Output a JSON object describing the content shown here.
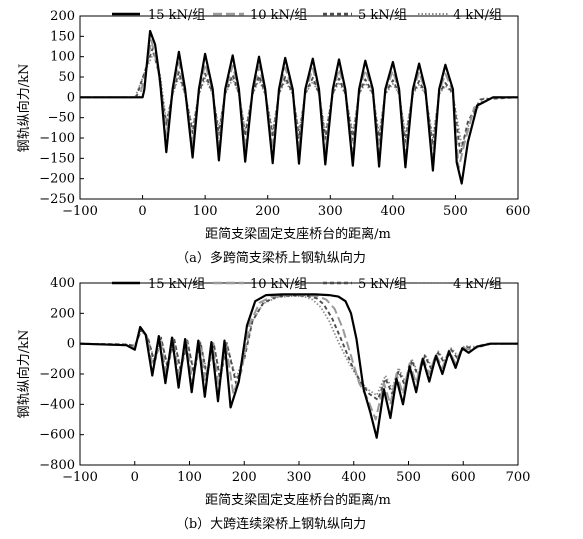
{
  "chart_data": [
    {
      "type": "line",
      "caption": "（a）多跨简支梁桥上钢轨纵向力",
      "xlabel": "距简支梁固定支座桥台的距离/m",
      "ylabel": "钢轨纵向力/kN",
      "xlim": [
        -100,
        600
      ],
      "ylim": [
        -250,
        200
      ],
      "xticks": [
        -100,
        0,
        100,
        200,
        300,
        400,
        500,
        600
      ],
      "yticks": [
        -250,
        -200,
        -150,
        -100,
        -50,
        0,
        50,
        100,
        150,
        200
      ],
      "xtick_labels": [
        "−100",
        "0",
        "100",
        "200",
        "300",
        "400",
        "500",
        "600"
      ],
      "ytick_labels": [
        "−250",
        "−200",
        "−150",
        "−100",
        "−50",
        "0",
        "50",
        "100",
        "150",
        "200"
      ],
      "legend_position": "top",
      "series": [
        {
          "name": "15 kN/组",
          "style": "solid",
          "color": "#000000",
          "x": [
            -100,
            0,
            3,
            12,
            20,
            28,
            38,
            48,
            58,
            68,
            80,
            90,
            100,
            112,
            122,
            132,
            144,
            154,
            164,
            176,
            186,
            196,
            208,
            218,
            228,
            240,
            250,
            260,
            272,
            282,
            292,
            304,
            314,
            324,
            336,
            346,
            356,
            368,
            378,
            388,
            400,
            410,
            420,
            432,
            442,
            452,
            464,
            474,
            484,
            496,
            502,
            510,
            520,
            535,
            560,
            600
          ],
          "y": [
            0,
            0,
            20,
            163,
            130,
            40,
            -135,
            20,
            112,
            20,
            -148,
            20,
            107,
            20,
            -155,
            20,
            103,
            20,
            -158,
            20,
            100,
            20,
            -162,
            20,
            97,
            20,
            -163,
            20,
            95,
            20,
            -165,
            20,
            93,
            20,
            -168,
            20,
            90,
            20,
            -170,
            20,
            87,
            20,
            -172,
            20,
            83,
            20,
            -180,
            20,
            80,
            20,
            -160,
            -212,
            -110,
            -20,
            0,
            0
          ]
        },
        {
          "name": "10 kN/组",
          "style": "longdash",
          "color": "#9a9a9a",
          "x": [
            -100,
            -5,
            5,
            14,
            24,
            38,
            48,
            58,
            68,
            80,
            90,
            100,
            112,
            122,
            132,
            144,
            154,
            164,
            176,
            186,
            196,
            208,
            218,
            228,
            240,
            250,
            260,
            272,
            282,
            292,
            304,
            314,
            324,
            336,
            346,
            356,
            368,
            378,
            388,
            400,
            410,
            420,
            432,
            442,
            452,
            464,
            474,
            484,
            496,
            505,
            515,
            530,
            560,
            600
          ],
          "y": [
            0,
            0,
            60,
            140,
            80,
            -95,
            15,
            85,
            15,
            -115,
            15,
            82,
            15,
            -120,
            15,
            78,
            15,
            -125,
            15,
            76,
            15,
            -128,
            15,
            73,
            15,
            -130,
            15,
            71,
            15,
            -132,
            15,
            69,
            15,
            -135,
            15,
            67,
            15,
            -137,
            15,
            65,
            15,
            -140,
            15,
            62,
            15,
            -150,
            15,
            58,
            15,
            -175,
            -110,
            -25,
            0,
            0
          ]
        },
        {
          "name": "5 kN/组",
          "style": "dashed",
          "color": "#4d4d4d",
          "x": [
            -100,
            -10,
            5,
            16,
            26,
            38,
            48,
            58,
            68,
            80,
            90,
            100,
            112,
            122,
            132,
            144,
            154,
            164,
            176,
            186,
            196,
            208,
            218,
            228,
            240,
            250,
            260,
            272,
            282,
            292,
            304,
            314,
            324,
            336,
            346,
            356,
            368,
            378,
            388,
            400,
            410,
            420,
            432,
            442,
            452,
            464,
            474,
            484,
            496,
            508,
            520,
            540,
            600
          ],
          "y": [
            0,
            0,
            70,
            120,
            60,
            -70,
            10,
            62,
            10,
            -88,
            10,
            58,
            10,
            -92,
            10,
            55,
            10,
            -95,
            10,
            53,
            10,
            -98,
            10,
            50,
            10,
            -100,
            10,
            48,
            10,
            -102,
            10,
            46,
            10,
            -105,
            10,
            44,
            10,
            -107,
            10,
            42,
            10,
            -110,
            10,
            40,
            10,
            -118,
            10,
            35,
            10,
            -140,
            -60,
            -5,
            0
          ]
        },
        {
          "name": "4 kN/组",
          "style": "dotted",
          "color": "#8a8a8a",
          "x": [
            -100,
            -12,
            5,
            18,
            28,
            38,
            48,
            58,
            68,
            80,
            90,
            100,
            112,
            122,
            132,
            144,
            154,
            164,
            176,
            186,
            196,
            208,
            218,
            228,
            240,
            250,
            260,
            272,
            282,
            292,
            304,
            314,
            324,
            336,
            346,
            356,
            368,
            378,
            388,
            400,
            410,
            420,
            432,
            442,
            452,
            464,
            474,
            484,
            496,
            510,
            525,
            545,
            600
          ],
          "y": [
            0,
            0,
            68,
            110,
            55,
            -58,
            8,
            50,
            8,
            -75,
            8,
            47,
            8,
            -78,
            8,
            45,
            8,
            -80,
            8,
            43,
            8,
            -82,
            8,
            41,
            8,
            -84,
            8,
            39,
            8,
            -86,
            8,
            37,
            8,
            -88,
            8,
            35,
            8,
            -90,
            8,
            33,
            8,
            -92,
            8,
            31,
            8,
            -100,
            8,
            28,
            8,
            -120,
            -50,
            -3,
            0
          ]
        }
      ]
    },
    {
      "type": "line",
      "caption": "（b）大跨连续梁桥上钢轨纵向力",
      "xlabel": "距简支梁固定支座桥台的距离/m",
      "ylabel": "钢轨纵向力/kN",
      "xlim": [
        -100,
        700
      ],
      "ylim": [
        -800,
        400
      ],
      "xticks": [
        -100,
        0,
        100,
        200,
        300,
        400,
        500,
        600,
        700
      ],
      "yticks": [
        -800,
        -600,
        -400,
        -200,
        0,
        200,
        400
      ],
      "xtick_labels": [
        "−100",
        "0",
        "100",
        "200",
        "300",
        "400",
        "500",
        "600",
        "700"
      ],
      "ytick_labels": [
        "−800",
        "−600",
        "−400",
        "−200",
        "0",
        "200",
        "400"
      ],
      "legend_position": "top",
      "series": [
        {
          "name": "15 kN/组",
          "style": "solid",
          "color": "#000000",
          "x": [
            -100,
            -15,
            0,
            10,
            20,
            32,
            44,
            56,
            68,
            80,
            92,
            104,
            116,
            128,
            140,
            152,
            164,
            175,
            190,
            205,
            220,
            240,
            270,
            300,
            330,
            355,
            372,
            385,
            395,
            405,
            418,
            430,
            442,
            455,
            467,
            478,
            490,
            502,
            514,
            526,
            538,
            550,
            562,
            574,
            586,
            598,
            610,
            625,
            650,
            700
          ],
          "y": [
            0,
            -10,
            -40,
            110,
            60,
            -210,
            50,
            -260,
            40,
            -290,
            30,
            -320,
            20,
            -350,
            10,
            -380,
            20,
            -420,
            -250,
            120,
            280,
            320,
            325,
            325,
            325,
            320,
            310,
            280,
            200,
            30,
            -300,
            -450,
            -620,
            -300,
            -490,
            -230,
            -400,
            -150,
            -320,
            -100,
            -250,
            -80,
            -200,
            -50,
            -160,
            -30,
            -60,
            -20,
            0,
            0
          ]
        },
        {
          "name": "10 kN/组",
          "style": "longdash",
          "color": "#9a9a9a",
          "x": [
            -100,
            -15,
            0,
            10,
            22,
            34,
            46,
            58,
            70,
            82,
            94,
            106,
            118,
            130,
            142,
            154,
            166,
            180,
            195,
            210,
            228,
            250,
            280,
            310,
            335,
            350,
            365,
            380,
            395,
            410,
            425,
            440,
            455,
            467,
            478,
            490,
            502,
            514,
            526,
            538,
            550,
            562,
            574,
            586,
            598,
            612,
            640,
            700
          ],
          "y": [
            0,
            -10,
            -25,
            100,
            50,
            -170,
            45,
            -210,
            35,
            -240,
            25,
            -260,
            15,
            -280,
            5,
            -300,
            10,
            -330,
            -180,
            130,
            270,
            310,
            320,
            320,
            312,
            290,
            230,
            100,
            -80,
            -260,
            -360,
            -500,
            -260,
            -400,
            -200,
            -330,
            -130,
            -260,
            -90,
            -200,
            -70,
            -160,
            -45,
            -130,
            -25,
            -40,
            0,
            0
          ]
        },
        {
          "name": "5 kN/组",
          "style": "dashed",
          "color": "#4d4d4d",
          "x": [
            -100,
            -15,
            0,
            12,
            24,
            36,
            48,
            60,
            72,
            84,
            96,
            108,
            120,
            132,
            144,
            156,
            168,
            185,
            200,
            215,
            235,
            260,
            290,
            315,
            332,
            345,
            360,
            378,
            395,
            412,
            428,
            444,
            458,
            470,
            482,
            494,
            506,
            518,
            530,
            542,
            554,
            566,
            578,
            590,
            602,
            620,
            650,
            700
          ],
          "y": [
            0,
            -5,
            -15,
            90,
            40,
            -130,
            40,
            -160,
            30,
            -180,
            20,
            -200,
            10,
            -220,
            5,
            -240,
            5,
            -260,
            -100,
            150,
            270,
            310,
            318,
            315,
            300,
            260,
            170,
            20,
            -130,
            -250,
            -330,
            -370,
            -230,
            -330,
            -180,
            -280,
            -110,
            -220,
            -80,
            -170,
            -60,
            -130,
            -40,
            -100,
            -20,
            -30,
            0,
            0
          ]
        },
        {
          "name": "4 kN/组",
          "style": "dotted",
          "color": "#8a8a8a",
          "x": [
            -100,
            -15,
            0,
            12,
            24,
            36,
            48,
            60,
            72,
            84,
            96,
            108,
            120,
            132,
            144,
            156,
            168,
            185,
            200,
            215,
            235,
            260,
            290,
            310,
            325,
            340,
            355,
            372,
            390,
            408,
            425,
            442,
            458,
            470,
            482,
            494,
            506,
            518,
            530,
            542,
            554,
            566,
            578,
            590,
            602,
            620,
            650,
            700
          ],
          "y": [
            0,
            -5,
            -12,
            85,
            35,
            -110,
            35,
            -140,
            25,
            -160,
            15,
            -175,
            8,
            -190,
            3,
            -210,
            3,
            -230,
            -80,
            150,
            265,
            305,
            315,
            310,
            290,
            240,
            150,
            10,
            -120,
            -230,
            -300,
            -340,
            -210,
            -300,
            -160,
            -250,
            -100,
            -200,
            -70,
            -150,
            -50,
            -110,
            -30,
            -80,
            -15,
            -20,
            0,
            0
          ]
        }
      ]
    }
  ]
}
